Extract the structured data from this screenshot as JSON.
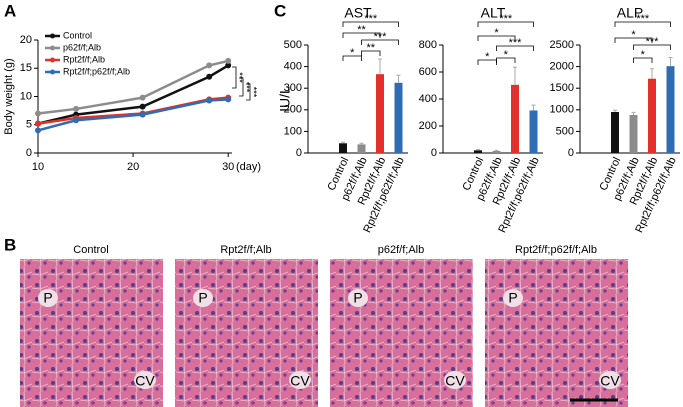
{
  "panels": {
    "a": "A",
    "b": "B",
    "c": "C"
  },
  "images": [
    {
      "title": "Control",
      "labels": [
        "P",
        "CV"
      ]
    },
    {
      "title": "Rpt2f/f;Alb",
      "labels": [
        "P",
        "CV"
      ]
    },
    {
      "title": "p62f/f;Alb",
      "labels": [
        "P",
        "CV"
      ]
    },
    {
      "title": "Rpt2f/f;p62f/f;Alb",
      "labels": [
        "P",
        "CV"
      ]
    }
  ],
  "chart_data": [
    {
      "type": "line",
      "x": [
        10,
        14,
        21,
        28,
        30
      ],
      "series": [
        {
          "name": "Control",
          "color": "#111111",
          "values": [
            5.2,
            6.8,
            8.2,
            13.5,
            15.5
          ]
        },
        {
          "name": "p62f/f;Alb",
          "color": "#8c8c8c",
          "values": [
            7,
            7.8,
            9.8,
            15.5,
            16.3
          ]
        },
        {
          "name": "Rpt2f/f;Alb",
          "color": "#e3302b",
          "values": [
            5.2,
            6.2,
            7,
            9.5,
            9.8
          ]
        },
        {
          "name": "Rpt2f/f;p62f/f;Alb",
          "color": "#2e6db4",
          "values": [
            4,
            5.8,
            6.8,
            9.3,
            9.5
          ]
        }
      ],
      "xlim": [
        10,
        30.4
      ],
      "xticks": [
        10,
        20,
        30
      ],
      "ylim": [
        0,
        20
      ],
      "yticks": [
        0,
        5,
        10,
        15,
        20
      ],
      "ylabel": "Body weight (g)",
      "xlabel": "(day)",
      "annotations": [
        "***",
        "***",
        "***"
      ],
      "legend": "upper left"
    },
    {
      "type": "bar",
      "title": "AST",
      "ylabel": "IU/L",
      "categories": [
        "Control",
        "p62f/f;Alb",
        "Rpt2f/f;Alb",
        "Rpt2f/f;p62f/f;Alb"
      ],
      "values": [
        45,
        40,
        365,
        325
      ],
      "errors": [
        5,
        5,
        70,
        35
      ],
      "colors": [
        "#111111",
        "#8c8c8c",
        "#e3302b",
        "#2e6db4"
      ],
      "ylim": [
        0,
        500
      ],
      "yticks": [
        0,
        100,
        200,
        300,
        400,
        500
      ],
      "annotations": [
        "***",
        "**",
        "***",
        "**",
        "*"
      ]
    },
    {
      "type": "bar",
      "title": "ALT",
      "categories": [
        "Control",
        "p62f/f;Alb",
        "Rpt2f/f;Alb",
        "Rpt2f/f;p62f/f;Alb"
      ],
      "values": [
        20,
        15,
        505,
        315
      ],
      "errors": [
        5,
        5,
        130,
        40
      ],
      "colors": [
        "#111111",
        "#8c8c8c",
        "#e3302b",
        "#2e6db4"
      ],
      "ylim": [
        0,
        800
      ],
      "yticks": [
        0,
        200,
        400,
        600,
        800
      ],
      "annotations": [
        "***",
        "*",
        "***",
        "*",
        "*"
      ]
    },
    {
      "type": "bar",
      "title": "ALP",
      "categories": [
        "Control",
        "p62f/f;Alb",
        "Rpt2f/f;Alb",
        "Rpt2f/f;p62f/f;Alb"
      ],
      "values": [
        950,
        880,
        1720,
        2010
      ],
      "errors": [
        40,
        60,
        230,
        200
      ],
      "colors": [
        "#111111",
        "#8c8c8c",
        "#e3302b",
        "#2e6db4"
      ],
      "ylim": [
        0,
        2500
      ],
      "yticks": [
        0,
        500,
        1000,
        1500,
        2000,
        2500
      ],
      "annotations": [
        "***",
        "*",
        "***",
        "*"
      ]
    }
  ]
}
